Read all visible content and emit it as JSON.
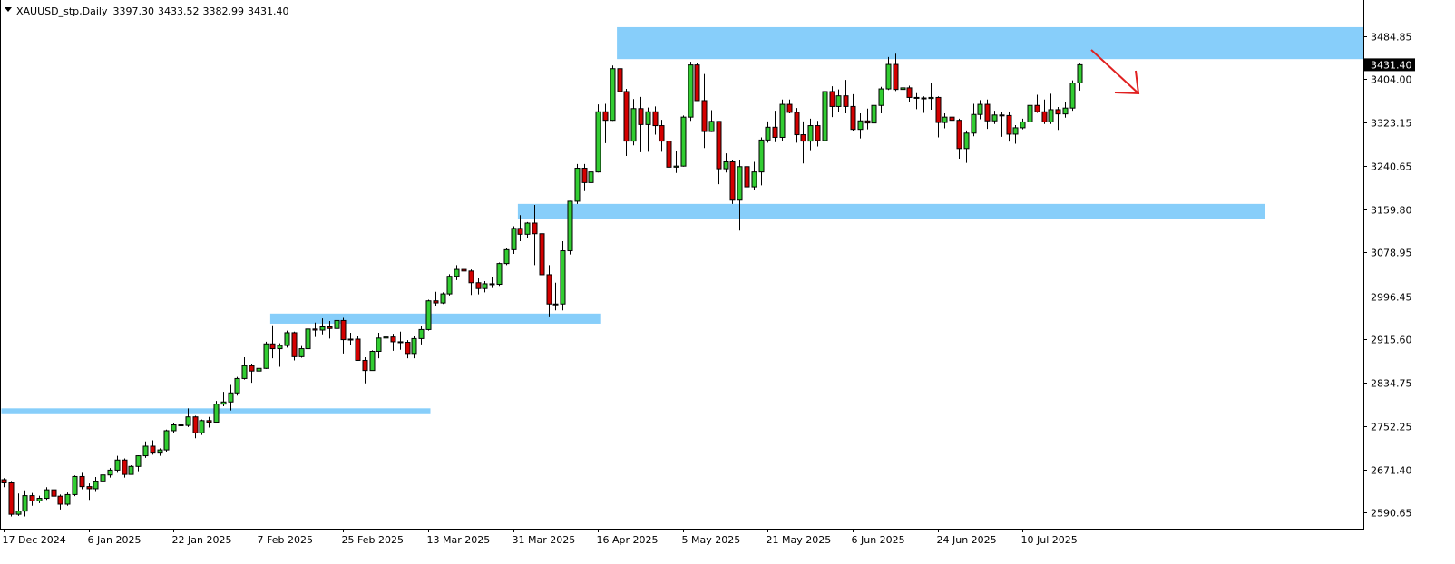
{
  "chart_data": {
    "type": "candlestick",
    "symbol": "XAUUSD_stp,Daily",
    "header_values": [
      "3397.30",
      "3433.52",
      "3382.99",
      "3431.40"
    ],
    "last_price_label": "3431.40",
    "up_color": "#32cd32",
    "down_color": "#d40000",
    "zone_color": "#87cefa",
    "categories": [
      "17 Dec 2024",
      null,
      null,
      null,
      null,
      null,
      null,
      null,
      null,
      null,
      null,
      null,
      "6 Jan 2025",
      null,
      null,
      null,
      null,
      null,
      null,
      null,
      null,
      null,
      null,
      null,
      "22 Jan 2025",
      null,
      null,
      null,
      null,
      null,
      null,
      null,
      null,
      null,
      null,
      null,
      "7 Feb 2025",
      null,
      null,
      null,
      null,
      null,
      null,
      null,
      null,
      null,
      null,
      null,
      "25 Feb 2025",
      null,
      null,
      null,
      null,
      null,
      null,
      null,
      null,
      null,
      null,
      null,
      "13 Mar 2025",
      null,
      null,
      null,
      null,
      null,
      null,
      null,
      null,
      null,
      null,
      null,
      "31 Mar 2025",
      null,
      null,
      null,
      null,
      null,
      null,
      null,
      null,
      null,
      null,
      null,
      "16 Apr 2025",
      null,
      null,
      null,
      null,
      null,
      null,
      null,
      null,
      null,
      null,
      null,
      "5 May 2025",
      null,
      null,
      null,
      null,
      null,
      null,
      null,
      null,
      null,
      null,
      null,
      "21 May 2025",
      null,
      null,
      null,
      null,
      null,
      null,
      null,
      null,
      null,
      null,
      null,
      "6 Jun 2025",
      null,
      null,
      null,
      null,
      null,
      null,
      null,
      null,
      null,
      null,
      null,
      "24 Jun 2025",
      null,
      null,
      null,
      null,
      null,
      null,
      null,
      null,
      null,
      null,
      null,
      "10 Jul 2025",
      null,
      null,
      null,
      null,
      null,
      null,
      null,
      null
    ],
    "open": [
      2652,
      2646,
      2587,
      2593,
      2622,
      2612,
      2617,
      2633,
      2621,
      2606,
      2624,
      2658,
      2639,
      2635,
      2648,
      2661,
      2670,
      2689,
      2662,
      2677,
      2697,
      2715,
      2702,
      2708,
      2744,
      2755,
      2754,
      2770,
      2740,
      2763,
      2760,
      2794,
      2798,
      2815,
      2842,
      2866,
      2856,
      2861,
      2907,
      2898,
      2904,
      2928,
      2883,
      2898,
      2935,
      2933,
      2939,
      2936,
      2951,
      2915,
      2916,
      2876,
      2857,
      2893,
      2918,
      2920,
      2911,
      2910,
      2889,
      2917,
      2934,
      2988,
      2984,
      3001,
      3034,
      3047,
      3044,
      3022,
      3011,
      3020,
      3019,
      3058,
      3084,
      3124,
      3113,
      3134,
      3114,
      3037,
      2982,
      2982,
      3082,
      3175,
      3237,
      3210,
      3230,
      3343,
      3327,
      3424,
      3381,
      3288,
      3349,
      3319,
      3343,
      3317,
      3288,
      3239,
      3241,
      3333,
      3431,
      3364,
      3306,
      3325,
      3236,
      3249,
      3177,
      3240,
      3202,
      3230,
      3290,
      3314,
      3295,
      3357,
      3342,
      3300,
      3288,
      3317,
      3289,
      3381,
      3353,
      3373,
      3353,
      3310,
      3326,
      3322,
      3355,
      3386,
      3432,
      3385,
      3388,
      3370,
      3369,
      3368,
      3370,
      3323,
      3333,
      3327,
      3274,
      3303,
      3338,
      3357,
      3326,
      3337,
      3336,
      3301,
      3313,
      3324,
      3355,
      3343,
      3324,
      3347,
      3339,
      3350,
      3397.3
    ],
    "high": [
      2655,
      2648,
      2626,
      2632,
      2627,
      2622,
      2638,
      2640,
      2624,
      2628,
      2660,
      2665,
      2645,
      2657,
      2670,
      2674,
      2697,
      2692,
      2679,
      2698,
      2724,
      2726,
      2711,
      2746,
      2759,
      2764,
      2786,
      2772,
      2765,
      2770,
      2800,
      2817,
      2830,
      2845,
      2882,
      2870,
      2886,
      2911,
      2942,
      2908,
      2932,
      2930,
      2903,
      2938,
      2947,
      2955,
      2950,
      2956,
      2956,
      2928,
      2921,
      2882,
      2895,
      2928,
      2930,
      2926,
      2930,
      2914,
      2921,
      2940,
      2990,
      3005,
      3004,
      3038,
      3055,
      3057,
      3047,
      3030,
      3025,
      3032,
      3060,
      3087,
      3128,
      3149,
      3136,
      3168,
      3136,
      3055,
      3022,
      3100,
      3176,
      3245,
      3245,
      3232,
      3357,
      3358,
      3430,
      3500,
      3386,
      3367,
      3371,
      3351,
      3353,
      3328,
      3290,
      3270,
      3336,
      3437,
      3435,
      3414,
      3346,
      3325,
      3265,
      3252,
      3252,
      3252,
      3249,
      3295,
      3325,
      3345,
      3366,
      3366,
      3350,
      3325,
      3330,
      3326,
      3393,
      3391,
      3385,
      3403,
      3376,
      3340,
      3349,
      3360,
      3390,
      3446,
      3452,
      3403,
      3392,
      3378,
      3372,
      3398,
      3372,
      3340,
      3350,
      3330,
      3308,
      3358,
      3365,
      3366,
      3345,
      3343,
      3342,
      3318,
      3330,
      3369,
      3375,
      3366,
      3377,
      3352,
      3361,
      3402,
      3433.52
    ],
    "low": [
      2638,
      2583,
      2584,
      2583,
      2603,
      2608,
      2614,
      2616,
      2596,
      2603,
      2621,
      2634,
      2614,
      2629,
      2642,
      2656,
      2665,
      2656,
      2662,
      2668,
      2693,
      2699,
      2697,
      2704,
      2739,
      2744,
      2751,
      2730,
      2736,
      2750,
      2758,
      2790,
      2782,
      2810,
      2840,
      2834,
      2853,
      2860,
      2880,
      2864,
      2900,
      2876,
      2881,
      2896,
      2920,
      2925,
      2917,
      2930,
      2889,
      2905,
      2875,
      2833,
      2857,
      2880,
      2911,
      2894,
      2896,
      2880,
      2880,
      2906,
      2932,
      2978,
      2982,
      2998,
      3027,
      3024,
      2999,
      3000,
      3004,
      3012,
      3016,
      3055,
      3076,
      3100,
      3106,
      3055,
      3015,
      2957,
      2970,
      2970,
      3075,
      3170,
      3194,
      3205,
      3229,
      3284,
      3326,
      3367,
      3260,
      3280,
      3267,
      3268,
      3300,
      3268,
      3202,
      3228,
      3240,
      3326,
      3366,
      3275,
      3305,
      3207,
      3229,
      3170,
      3120,
      3154,
      3197,
      3205,
      3285,
      3286,
      3288,
      3340,
      3285,
      3246,
      3271,
      3278,
      3285,
      3333,
      3343,
      3340,
      3306,
      3293,
      3310,
      3316,
      3340,
      3384,
      3382,
      3366,
      3362,
      3348,
      3341,
      3347,
      3295,
      3312,
      3318,
      3255,
      3247,
      3297,
      3329,
      3311,
      3320,
      3296,
      3287,
      3283,
      3310,
      3322,
      3341,
      3320,
      3320,
      3309,
      3332,
      3345,
      3382.99
    ],
    "close": [
      2646,
      2587,
      2593,
      2622,
      2612,
      2617,
      2633,
      2621,
      2606,
      2624,
      2658,
      2639,
      2635,
      2648,
      2661,
      2670,
      2689,
      2662,
      2677,
      2697,
      2715,
      2702,
      2708,
      2744,
      2755,
      2754,
      2770,
      2740,
      2763,
      2760,
      2794,
      2798,
      2815,
      2842,
      2866,
      2856,
      2861,
      2907,
      2898,
      2904,
      2928,
      2883,
      2898,
      2935,
      2933,
      2939,
      2936,
      2951,
      2915,
      2916,
      2876,
      2857,
      2893,
      2918,
      2920,
      2911,
      2910,
      2889,
      2917,
      2934,
      2988,
      2984,
      3001,
      3034,
      3047,
      3044,
      3022,
      3011,
      3020,
      3019,
      3058,
      3084,
      3124,
      3113,
      3134,
      3114,
      3037,
      2982,
      2982,
      3082,
      3175,
      3237,
      3210,
      3230,
      3343,
      3327,
      3424,
      3381,
      3288,
      3349,
      3319,
      3343,
      3317,
      3288,
      3239,
      3241,
      3333,
      3431,
      3364,
      3306,
      3325,
      3236,
      3249,
      3177,
      3240,
      3202,
      3230,
      3290,
      3314,
      3295,
      3357,
      3342,
      3300,
      3288,
      3317,
      3289,
      3381,
      3353,
      3373,
      3353,
      3310,
      3326,
      3322,
      3355,
      3386,
      3432,
      3385,
      3388,
      3370,
      3369,
      3368,
      3370,
      3323,
      3333,
      3327,
      3274,
      3303,
      3338,
      3357,
      3326,
      3337,
      3336,
      3301,
      3313,
      3324,
      3355,
      3343,
      3324,
      3347,
      3339,
      3350,
      3397,
      3431.4
    ],
    "zones": [
      {
        "ylim": [
          2775,
          2786
        ],
        "xlim": [
          0,
          60
        ]
      },
      {
        "ylim": [
          2945,
          2964
        ],
        "xlim": [
          38,
          84
        ]
      },
      {
        "ylim": [
          3141,
          3170
        ],
        "xlim": [
          73,
          178
        ]
      },
      {
        "ylim": [
          3442,
          3502
        ],
        "xlim": [
          87,
          192
        ]
      }
    ],
    "ylim": [
      2560,
      3553
    ],
    "yticks": [
      2590.65,
      {
        "value": 2671.4,
        "label": "2671.40"
      },
      2752.25,
      2834.75,
      {
        "value": 2915.6,
        "label": "2915.60"
      },
      2996.45,
      3078.95,
      {
        "value": 3159.8,
        "label": "3159.80"
      },
      3240.65,
      3323.15,
      {
        "value": 3404,
        "label": "3404.00"
      },
      3484.85
    ]
  }
}
